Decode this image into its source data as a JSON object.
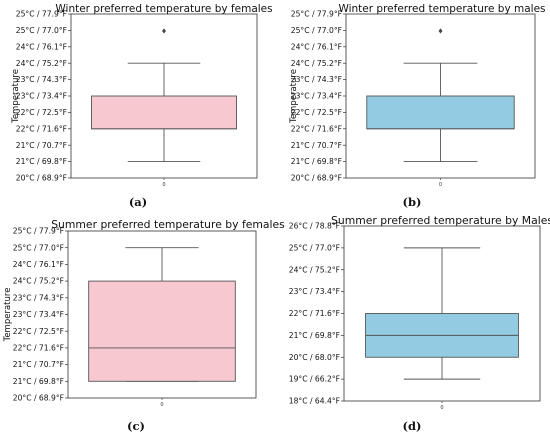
{
  "chart_data": [
    {
      "type": "box",
      "title": "Winter preferred temperature by females",
      "ylabel": "Temperature",
      "caption": "(a)",
      "color": "#f8c8d1",
      "x_tick": "0",
      "y_ticks": [
        "20°C / 68.9°F",
        "21°C / 69.8°F",
        "21°C / 70.7°F",
        "22°C / 71.6°F",
        "22°C / 72.5°F",
        "23°C / 73.4°F",
        "23°C / 74.3°F",
        "24°C / 75.2°F",
        "24°C / 76.1°F",
        "25°C / 77.0°F",
        "25°C / 77.9°F"
      ],
      "ylim_f": [
        68.9,
        77.9
      ],
      "box": {
        "whisker_low": 69.8,
        "q1": 71.6,
        "median": 71.6,
        "q3": 73.4,
        "whisker_high": 75.2,
        "outliers": [
          77.0
        ]
      }
    },
    {
      "type": "box",
      "title": "Winter preferred temperature by males",
      "ylabel": "Temperature",
      "caption": "(b)",
      "color": "#93cce2",
      "x_tick": "0",
      "y_ticks": [
        "20°C / 68.9°F",
        "21°C / 69.8°F",
        "21°C / 70.7°F",
        "22°C / 71.6°F",
        "22°C / 72.5°F",
        "23°C / 73.4°F",
        "23°C / 74.3°F",
        "24°C / 75.2°F",
        "24°C / 76.1°F",
        "25°C / 77.0°F",
        "25°C / 77.9°F"
      ],
      "ylim_f": [
        68.9,
        77.9
      ],
      "box": {
        "whisker_low": 69.8,
        "q1": 71.6,
        "median": 71.6,
        "q3": 73.4,
        "whisker_high": 75.2,
        "outliers": [
          77.0
        ]
      }
    },
    {
      "type": "box",
      "title": "Summer preferred temperature by females",
      "ylabel": "Temperature",
      "caption": "(c)",
      "color": "#f8c8d1",
      "x_tick": "0",
      "y_ticks": [
        "20°C / 68.9°F",
        "21°C / 69.8°F",
        "21°C / 70.7°F",
        "22°C / 71.6°F",
        "22°C / 72.5°F",
        "23°C / 73.4°F",
        "23°C / 74.3°F",
        "24°C / 75.2°F",
        "24°C / 76.1°F",
        "25°C / 77.0°F",
        "25°C / 77.9°F"
      ],
      "ylim_f": [
        68.9,
        77.9
      ],
      "box": {
        "whisker_low": 69.8,
        "q1": 69.8,
        "median": 71.6,
        "q3": 75.2,
        "whisker_high": 77.0,
        "outliers": []
      }
    },
    {
      "type": "box",
      "title": "Summer preferred temperature by Males",
      "ylabel": "",
      "caption": "(d)",
      "color": "#93cce2",
      "x_tick": "0",
      "y_ticks": [
        "18°C / 64.4°F",
        "19°C / 66.2°F",
        "20°C / 68.0°F",
        "21°C / 69.8°F",
        "22°C / 71.6°F",
        "23°C / 73.4°F",
        "24°C / 75.2°F",
        "25°C / 77.0°F",
        "26°C / 78.8°F"
      ],
      "ylim_f": [
        64.4,
        78.8
      ],
      "box": {
        "whisker_low": 66.2,
        "q1": 68.0,
        "median": 69.8,
        "q3": 71.6,
        "whisker_high": 77.0,
        "outliers": []
      }
    }
  ]
}
